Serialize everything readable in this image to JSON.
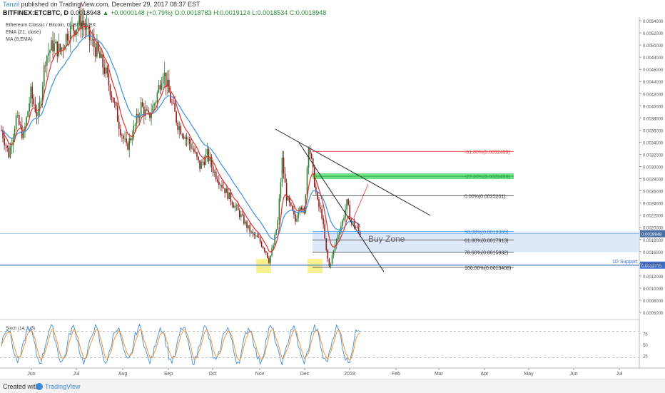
{
  "header": {
    "author": "Tanzil",
    "published": "published on TradingView.com, December 29, 2017 08:37 EST",
    "symbol": "BITFINEX:ETCBTC, D",
    "price": "0.0018948",
    "change": "▲ +0.0000148 (+0.79%)",
    "ohlc": "O:0.0018783 H:0.0019124 L:0.0018534 C:0.0018948"
  },
  "legend": {
    "title": "Ethereum Classic / Bitcoin, D, BITFINEX",
    "ema": "EMA (21, close)",
    "ma": "MA (8,EMA)"
  },
  "footer": {
    "created": "Created with",
    "brand": "TradingView"
  },
  "colors": {
    "ema": "#e0312b",
    "ma": "#3b8fe0",
    "up": "#2e7d32",
    "down": "#8b1a1a",
    "fib_red": "#e53935",
    "zone_green": "#4cd964",
    "buy_zone": "#d7e4f7",
    "support": "#3f6fd0",
    "marker": "#f5ef80",
    "stoch_k": "#3b8fe0",
    "stoch_d": "#f08a24"
  },
  "chart_data": [
    {
      "type": "candlestick",
      "title": "Ethereum Classic / Bitcoin, D, BITFINEX",
      "x_ticks": [
        "Jun",
        "Jul",
        "Aug",
        "Sep",
        "Oct",
        "Nov",
        "Dec",
        "2018",
        "Feb",
        "Mar",
        "Apr",
        "May",
        "Jun",
        "Jul"
      ],
      "ylim": [
        0.0004,
        0.0054
      ],
      "y_ticks": [
        "0.0054000",
        "0.0052000",
        "0.0050000",
        "0.0048000",
        "0.0046000",
        "0.0044000",
        "0.0042000",
        "0.0040000",
        "0.0038000",
        "0.0036000",
        "0.0034000",
        "0.0032000",
        "0.0030000",
        "0.0028000",
        "0.0026000",
        "0.0024000",
        "0.0022000",
        "0.0020000",
        "0.0018000",
        "0.0016000",
        "0.0014000",
        "0.0012000",
        "0.0010000",
        "0.0008000",
        "0.0006000"
      ],
      "price_path": [
        [
          0,
          0.0036
        ],
        [
          5,
          0.0032
        ],
        [
          10,
          0.0038
        ],
        [
          15,
          0.0035
        ],
        [
          20,
          0.0042
        ],
        [
          25,
          0.0038
        ],
        [
          30,
          0.0048
        ],
        [
          35,
          0.005
        ],
        [
          40,
          0.0049
        ],
        [
          45,
          0.0052
        ],
        [
          50,
          0.0053
        ],
        [
          55,
          0.0054
        ],
        [
          60,
          0.0051
        ],
        [
          65,
          0.0049
        ],
        [
          70,
          0.0046
        ],
        [
          75,
          0.0042
        ],
        [
          80,
          0.0037
        ],
        [
          85,
          0.0033
        ],
        [
          90,
          0.0036
        ],
        [
          95,
          0.004
        ],
        [
          100,
          0.0038
        ],
        [
          105,
          0.0041
        ],
        [
          110,
          0.0046
        ],
        [
          115,
          0.0041
        ],
        [
          120,
          0.0037
        ],
        [
          125,
          0.0035
        ],
        [
          130,
          0.0033
        ],
        [
          135,
          0.003
        ],
        [
          140,
          0.0032
        ],
        [
          145,
          0.0029
        ],
        [
          150,
          0.0027
        ],
        [
          155,
          0.0025
        ],
        [
          160,
          0.0023
        ],
        [
          165,
          0.0021
        ],
        [
          170,
          0.0019
        ],
        [
          175,
          0.0018
        ],
        [
          180,
          0.0016
        ],
        [
          182,
          0.00145
        ],
        [
          185,
          0.0017
        ],
        [
          188,
          0.0021
        ],
        [
          191,
          0.0031
        ],
        [
          194,
          0.0025
        ],
        [
          197,
          0.0023
        ],
        [
          200,
          0.0021
        ],
        [
          203,
          0.0024
        ],
        [
          206,
          0.0022
        ],
        [
          209,
          0.0034
        ],
        [
          212,
          0.0029
        ],
        [
          215,
          0.0024
        ],
        [
          218,
          0.0022
        ],
        [
          221,
          0.0016
        ],
        [
          223,
          0.00135
        ],
        [
          226,
          0.0016
        ],
        [
          229,
          0.0019
        ],
        [
          232,
          0.0021
        ],
        [
          235,
          0.0024
        ],
        [
          238,
          0.0021
        ],
        [
          241,
          0.002
        ],
        [
          244,
          0.0019
        ]
      ],
      "price_label": "0.0018948",
      "support": {
        "label": "1D Support",
        "value": "0.0013775",
        "price": 0.0013775
      },
      "fibonacci": [
        {
          "label": "-61.80%(0.0032489)",
          "price": 0.0032489,
          "color": "red"
        },
        {
          "label": "-27.20%(0.0028408)",
          "price": 0.0028408,
          "color": "green"
        },
        {
          "label": "0.00%(0.0025201)",
          "price": 0.0025201,
          "color": "black"
        },
        {
          "label": "50.00%(0.0019305)",
          "price": 0.0019305,
          "color": "blue"
        },
        {
          "label": "61.80%(0.0017913)",
          "price": 0.0017913,
          "color": "black"
        },
        {
          "label": "78.60%(0.0015932)",
          "price": 0.0015932,
          "color": "black"
        },
        {
          "label": "100.00%(0.0013408)",
          "price": 0.0013408,
          "color": "black"
        }
      ],
      "annotations": [
        "Buy Zone"
      ]
    },
    {
      "type": "line",
      "title": "Stoch (14, 3, 3)",
      "y_ticks": [
        "75",
        "50",
        "25"
      ],
      "ylim": [
        0,
        100
      ],
      "levels": [
        80,
        20
      ]
    }
  ]
}
